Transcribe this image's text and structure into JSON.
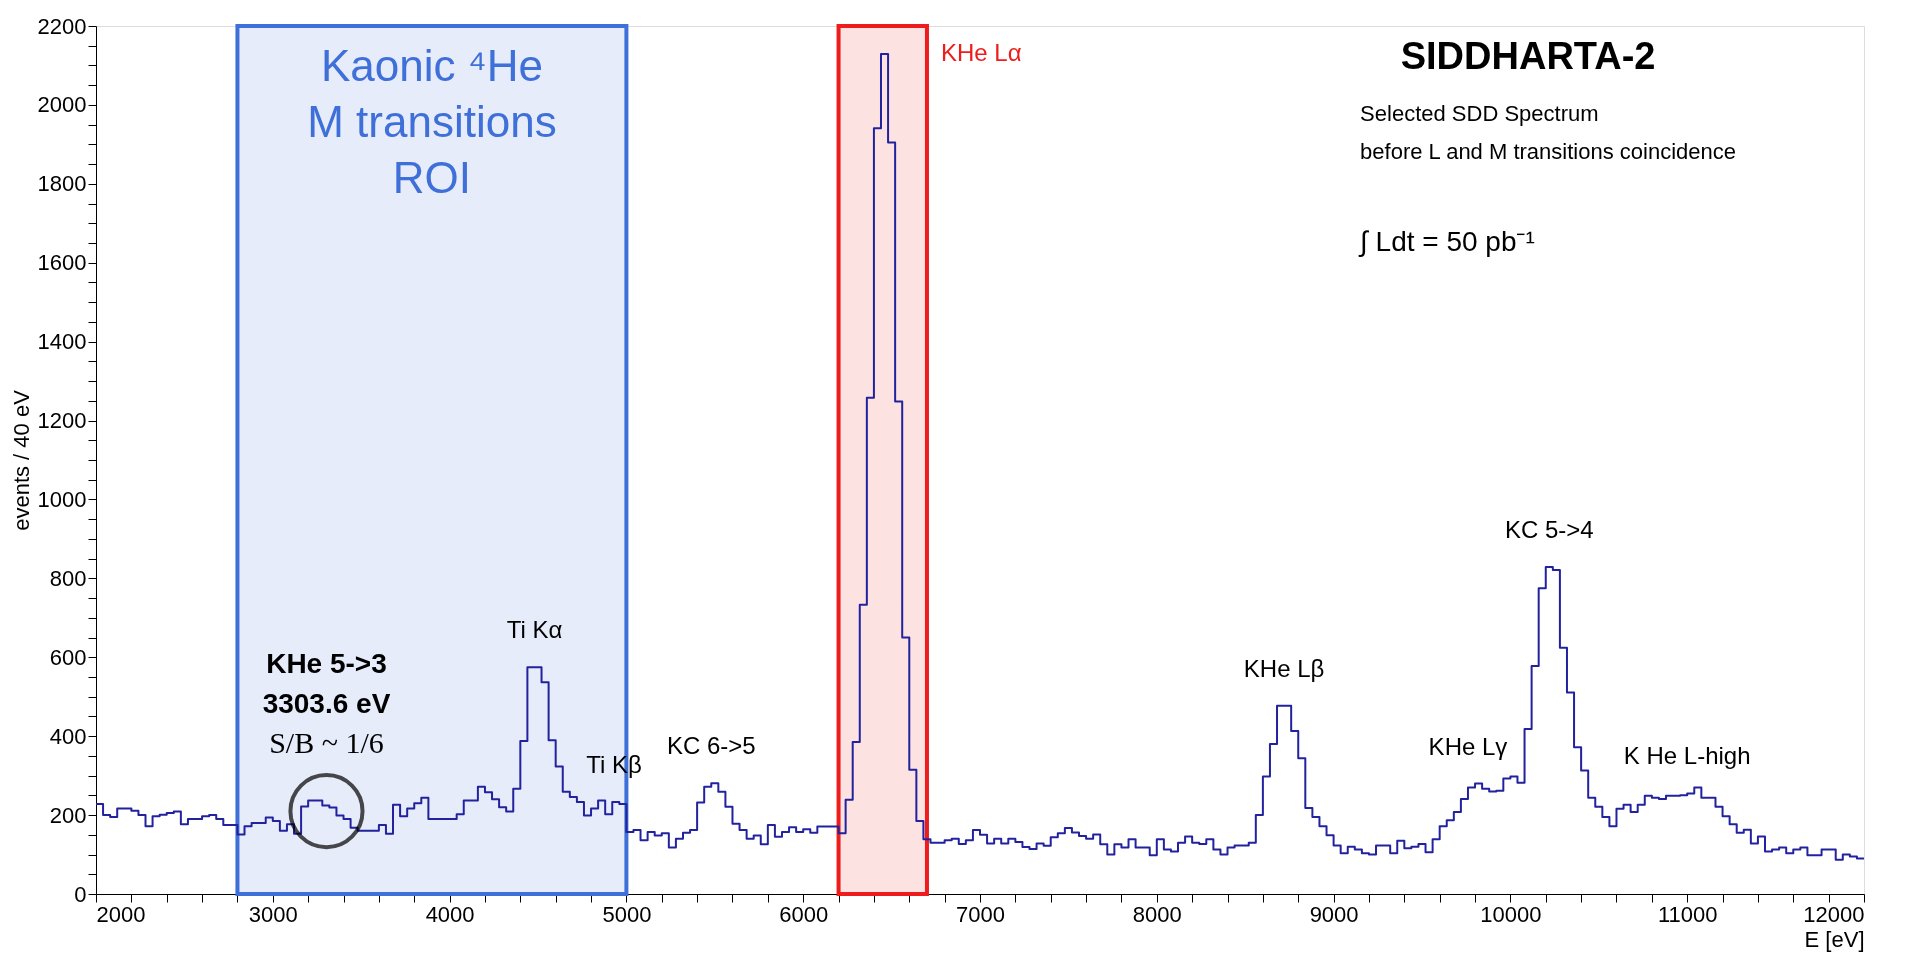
{
  "chart_data": {
    "type": "histogram",
    "title": "SIDDHARTA-2",
    "subtitle": "Selected SDD Spectrum\nbefore L and M transitions coincidence",
    "xlabel": "E [eV]",
    "ylabel": "events / 40 eV",
    "color": "#22229e",
    "bins": [
      2000,
      2040,
      2080,
      2120,
      2160,
      2200,
      2240,
      2280,
      2320,
      2360,
      2400,
      2440,
      2480,
      2520,
      2560,
      2600,
      2640,
      2680,
      2720,
      2760,
      2800,
      2840,
      2880,
      2920,
      2960,
      3000,
      3040,
      3080,
      3120,
      3160,
      3200,
      3240,
      3280,
      3320,
      3360,
      3400,
      3440,
      3480,
      3520,
      3560,
      3600,
      3640,
      3680,
      3720,
      3760,
      3800,
      3840,
      3880,
      3920,
      3960,
      4000,
      4040,
      4080,
      4120,
      4160,
      4200,
      4240,
      4280,
      4320,
      4360,
      4400,
      4440,
      4480,
      4520,
      4560,
      4600,
      4640,
      4680,
      4720,
      4760,
      4800,
      4840,
      4880,
      4920,
      4960,
      5000,
      5040,
      5080,
      5120,
      5160,
      5200,
      5240,
      5280,
      5320,
      5360,
      5400,
      5440,
      5480,
      5520,
      5560,
      5600,
      5640,
      5680,
      5720,
      5760,
      5800,
      5840,
      5880,
      5920,
      5960,
      6000,
      6040,
      6080,
      6120,
      6160,
      6200,
      6240,
      6280,
      6320,
      6360,
      6400,
      6440,
      6480,
      6520,
      6560,
      6600,
      6640,
      6680,
      6720,
      6760,
      6800,
      6840,
      6880,
      6920,
      6960,
      7000,
      7040,
      7080,
      7120,
      7160,
      7200,
      7240,
      7280,
      7320,
      7360,
      7400,
      7440,
      7480,
      7520,
      7560,
      7600,
      7640,
      7680,
      7720,
      7760,
      7800,
      7840,
      7880,
      7920,
      7960,
      8000,
      8040,
      8080,
      8120,
      8160,
      8200,
      8240,
      8280,
      8320,
      8360,
      8400,
      8440,
      8480,
      8520,
      8560,
      8600,
      8640,
      8680,
      8720,
      8760,
      8800,
      8840,
      8880,
      8920,
      8960,
      9000,
      9040,
      9080,
      9120,
      9160,
      9200,
      9240,
      9280,
      9320,
      9360,
      9400,
      9440,
      9480,
      9520,
      9560,
      9600,
      9640,
      9680,
      9720,
      9760,
      9800,
      9840,
      9880,
      9920,
      9960,
      10000,
      10040,
      10080,
      10120,
      10160,
      10200,
      10240,
      10280,
      10320,
      10360,
      10400,
      10440,
      10480,
      10520,
      10560,
      10600,
      10640,
      10680,
      10720,
      10760,
      10800,
      10840,
      10880,
      10920,
      10960,
      11000,
      11040,
      11080,
      11120,
      11160,
      11200,
      11240,
      11280,
      11320,
      11360,
      11400,
      11440,
      11480,
      11520,
      11560,
      11600,
      11640,
      11680,
      11720,
      11760,
      11800,
      11840,
      11880,
      11920,
      11960,
      12000
    ],
    "values": [
      228,
      200,
      195,
      217,
      217,
      211,
      200,
      172,
      197,
      201,
      205,
      209,
      177,
      190,
      190,
      197,
      200,
      190,
      175,
      175,
      151,
      172,
      180,
      180,
      194,
      185,
      160,
      177,
      153,
      222,
      237,
      237,
      224,
      219,
      199,
      190,
      168,
      160,
      160,
      160,
      175,
      153,
      226,
      197,
      217,
      230,
      244,
      190,
      190,
      190,
      190,
      202,
      237,
      237,
      272,
      258,
      240,
      220,
      209,
      267,
      388,
      575,
      575,
      537,
      390,
      323,
      259,
      246,
      233,
      199,
      217,
      237,
      202,
      233,
      228,
      157,
      162,
      136,
      157,
      148,
      154,
      118,
      140,
      155,
      162,
      232,
      272,
      281,
      259,
      221,
      178,
      162,
      140,
      148,
      126,
      175,
      145,
      157,
      169,
      157,
      164,
      155,
      171,
      171,
      171,
      154,
      239,
      385,
      733,
      1258,
      1941,
      2129,
      1905,
      1248,
      650,
      315,
      185,
      139,
      130,
      130,
      136,
      140,
      127,
      136,
      162,
      150,
      128,
      140,
      128,
      140,
      132,
      119,
      114,
      128,
      122,
      144,
      154,
      167,
      156,
      147,
      140,
      151,
      126,
      100,
      126,
      118,
      139,
      118,
      118,
      98,
      139,
      113,
      108,
      130,
      146,
      130,
      127,
      139,
      113,
      100,
      118,
      123,
      123,
      130,
      200,
      298,
      380,
      477,
      477,
      413,
      344,
      218,
      195,
      172,
      149,
      123,
      103,
      120,
      113,
      103,
      100,
      123,
      123,
      103,
      135,
      116,
      120,
      127,
      106,
      139,
      172,
      187,
      208,
      241,
      270,
      280,
      267,
      260,
      262,
      293,
      298,
      282,
      418,
      578,
      775,
      829,
      821,
      624,
      511,
      372,
      313,
      244,
      221,
      195,
      172,
      216,
      226,
      208,
      226,
      249,
      244,
      241,
      249,
      249,
      250,
      255,
      270,
      244,
      244,
      221,
      197,
      177,
      155,
      163,
      128,
      146,
      108,
      113,
      118,
      103,
      113,
      118,
      98,
      98,
      113,
      113,
      87,
      100,
      95,
      90
    ],
    "xlim": [
      2000,
      12000
    ],
    "xticks": [
      2000,
      {
        "value": 2200,
        "label": null
      },
      {
        "value": 2400,
        "label": null
      },
      {
        "value": 2600,
        "label": null
      },
      {
        "value": 2800,
        "label": null
      },
      3000,
      {
        "value": 3200,
        "label": null
      },
      {
        "value": 3400,
        "label": null
      },
      {
        "value": 3600,
        "label": null
      },
      {
        "value": 3800,
        "label": null
      },
      4000,
      {
        "value": 4200,
        "label": null
      },
      {
        "value": 4400,
        "label": null
      },
      {
        "value": 4600,
        "label": null
      },
      {
        "value": 4800,
        "label": null
      },
      5000,
      {
        "value": 5200,
        "label": null
      },
      {
        "value": 5400,
        "label": null
      },
      {
        "value": 5600,
        "label": null
      },
      {
        "value": 5800,
        "label": null
      },
      6000,
      {
        "value": 6200,
        "label": null
      },
      {
        "value": 6400,
        "label": null
      },
      {
        "value": 6600,
        "label": null
      },
      {
        "value": 6800,
        "label": null
      },
      7000,
      {
        "value": 7200,
        "label": null
      },
      {
        "value": 7400,
        "label": null
      },
      {
        "value": 7600,
        "label": null
      },
      {
        "value": 7800,
        "label": null
      },
      8000,
      {
        "value": 8200,
        "label": null
      },
      {
        "value": 8400,
        "label": null
      },
      {
        "value": 8600,
        "label": null
      },
      {
        "value": 8800,
        "label": null
      },
      9000,
      {
        "value": 9200,
        "label": null
      },
      {
        "value": 9400,
        "label": null
      },
      {
        "value": 9600,
        "label": null
      },
      {
        "value": 9800,
        "label": null
      },
      10000,
      {
        "value": 10200,
        "label": null
      },
      {
        "value": 10400,
        "label": null
      },
      {
        "value": 10600,
        "label": null
      },
      {
        "value": 10800,
        "label": null
      },
      11000,
      {
        "value": 11200,
        "label": null
      },
      {
        "value": 11400,
        "label": null
      },
      {
        "value": 11600,
        "label": null
      },
      {
        "value": 11800,
        "label": null
      },
      12000
    ],
    "ylim": [
      0,
      2200
    ],
    "yticks": [
      0,
      {
        "value": 50,
        "label": null
      },
      {
        "value": 100,
        "label": null
      },
      {
        "value": 150,
        "label": null
      },
      200,
      {
        "value": 250,
        "label": null
      },
      {
        "value": 300,
        "label": null
      },
      {
        "value": 350,
        "label": null
      },
      400,
      {
        "value": 450,
        "label": null
      },
      {
        "value": 500,
        "label": null
      },
      {
        "value": 550,
        "label": null
      },
      600,
      {
        "value": 650,
        "label": null
      },
      {
        "value": 700,
        "label": null
      },
      {
        "value": 750,
        "label": null
      },
      800,
      {
        "value": 850,
        "label": null
      },
      {
        "value": 900,
        "label": null
      },
      {
        "value": 950,
        "label": null
      },
      1000,
      {
        "value": 1050,
        "label": null
      },
      {
        "value": 1100,
        "label": null
      },
      {
        "value": 1150,
        "label": null
      },
      1200,
      {
        "value": 1250,
        "label": null
      },
      {
        "value": 1300,
        "label": null
      },
      {
        "value": 1350,
        "label": null
      },
      1400,
      {
        "value": 1450,
        "label": null
      },
      {
        "value": 1500,
        "label": null
      },
      {
        "value": 1550,
        "label": null
      },
      1600,
      {
        "value": 1650,
        "label": null
      },
      {
        "value": 1700,
        "label": null
      },
      {
        "value": 1750,
        "label": null
      },
      1800,
      {
        "value": 1850,
        "label": null
      },
      {
        "value": 1900,
        "label": null
      },
      {
        "value": 1950,
        "label": null
      },
      2000,
      {
        "value": 2050,
        "label": null
      },
      {
        "value": 2100,
        "label": null
      },
      {
        "value": 2150,
        "label": null
      },
      2200
    ],
    "bands": [
      {
        "axis": "x",
        "from": 2800,
        "to": 5000,
        "label": "Kaonic ⁴He\nM transitions\nROI",
        "color": "#3f6fd8"
      },
      {
        "axis": "x",
        "from": 6200,
        "to": 6700,
        "label": "KHe Lα",
        "color": "#ee1c1c"
      }
    ],
    "annotations": [
      "∫ Ldt = 50 pb⁻¹",
      {
        "text": "KHe 5->3\n3303.6 eV\nS/B ~ 1/6",
        "x": 3303.6,
        "y": 210
      },
      {
        "text": "Ti Kα",
        "x": 4480,
        "y": 575
      },
      {
        "text": "Ti Kβ",
        "x": 4930,
        "y": 233
      },
      {
        "text": "KC 6->5",
        "x": 5480,
        "y": 281
      },
      {
        "text": "KHe Lβ",
        "x": 8720,
        "y": 477
      },
      {
        "text": "KHe Lγ",
        "x": 9760,
        "y": 280
      },
      {
        "text": "KC 5->4",
        "x": 10220,
        "y": 829
      },
      {
        "text": "K He L-high",
        "x": 11000,
        "y": 255
      }
    ]
  }
}
